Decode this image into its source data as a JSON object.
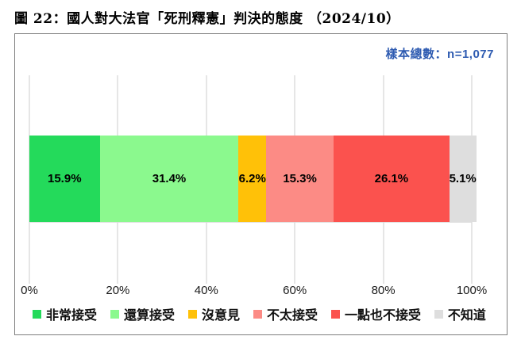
{
  "page": {
    "title": "圖 22：國人對大法官「死刑釋憲」判決的態度 （2024/10）"
  },
  "chart_data": {
    "type": "bar",
    "orientation": "horizontal",
    "stacked": true,
    "title": "圖 22：國人對大法官「死刑釋憲」判決的態度 （2024/10）",
    "sample_note": "樣本總數：n=1,077",
    "sample_note_color": "#2e5bb1",
    "categories": [
      "非常接受",
      "還算接受",
      "沒意見",
      "不太接受",
      "一點也不接受",
      "不知道"
    ],
    "values": [
      15.9,
      31.4,
      6.2,
      15.3,
      26.1,
      5.1
    ],
    "value_labels": [
      "15.9%",
      "31.4%",
      "6.2%",
      "15.3%",
      "26.1%",
      "5.1%"
    ],
    "colors": [
      "#24da5b",
      "#8bf98e",
      "#ffc108",
      "#fc8b85",
      "#fb524e",
      "#dedede"
    ],
    "x_ticks": [
      "0%",
      "20%",
      "40%",
      "60%",
      "80%",
      "100%"
    ],
    "xlim": [
      0,
      100
    ],
    "grid": true,
    "gridline_color": "#cccccc",
    "legend_position": "bottom"
  }
}
